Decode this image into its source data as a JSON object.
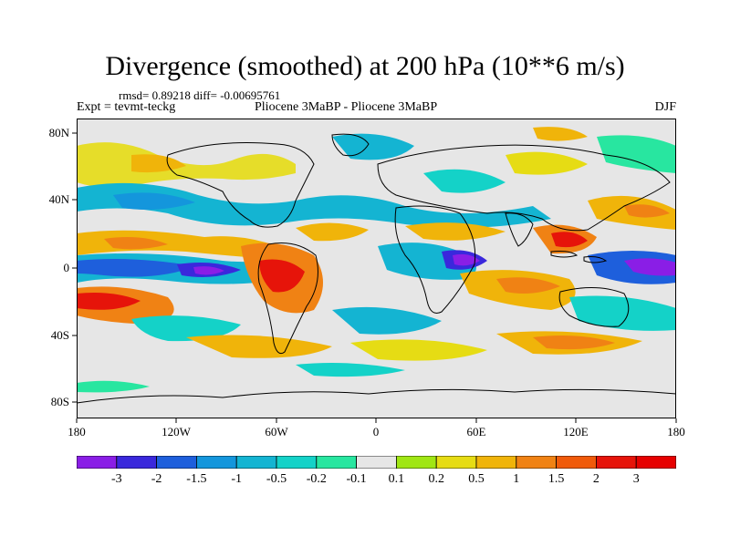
{
  "title": "Divergence (smoothed) at 200 hPa (10**6 m/s)",
  "stats": "rmsd= 0.89218  diff= -0.00695761",
  "expt": "Expt = tevmt-teckg",
  "comparison": "Pliocene   3MaBP - Pliocene   3MaBP",
  "season": "DJF",
  "lat_labels": [
    "80N",
    "40N",
    "0",
    "40S",
    "80S"
  ],
  "lon_labels": [
    "180",
    "120W",
    "60W",
    "0",
    "60E",
    "120E",
    "180"
  ],
  "colorbar": {
    "labels": [
      "-3",
      "-2",
      "-1.5",
      "-1",
      "-0.5",
      "-0.2",
      "-0.1",
      "0.1",
      "0.2",
      "0.5",
      "1",
      "1.5",
      "2",
      "3"
    ],
    "colors": [
      "#8a1ee6",
      "#3a28dc",
      "#1e5fdc",
      "#1496dc",
      "#14b4d2",
      "#14d2c8",
      "#28e6a0",
      "#e6e6e6",
      "#a0e614",
      "#e6dc14",
      "#f0b40a",
      "#f08214",
      "#f05a0a",
      "#e6140a",
      "#e60000"
    ]
  },
  "map_colors": {
    "ocean_bg": "#e6e6e6",
    "neg_strong": "#8a1ee6",
    "neg_med": "#1e5fdc",
    "neg_light": "#14b4d2",
    "neg_weak": "#14d2c8",
    "pos_weak": "#a0e614",
    "pos_light": "#e6dc14",
    "pos_med": "#f0b40a",
    "pos_strong": "#f05a0a",
    "pos_max": "#e6140a"
  }
}
